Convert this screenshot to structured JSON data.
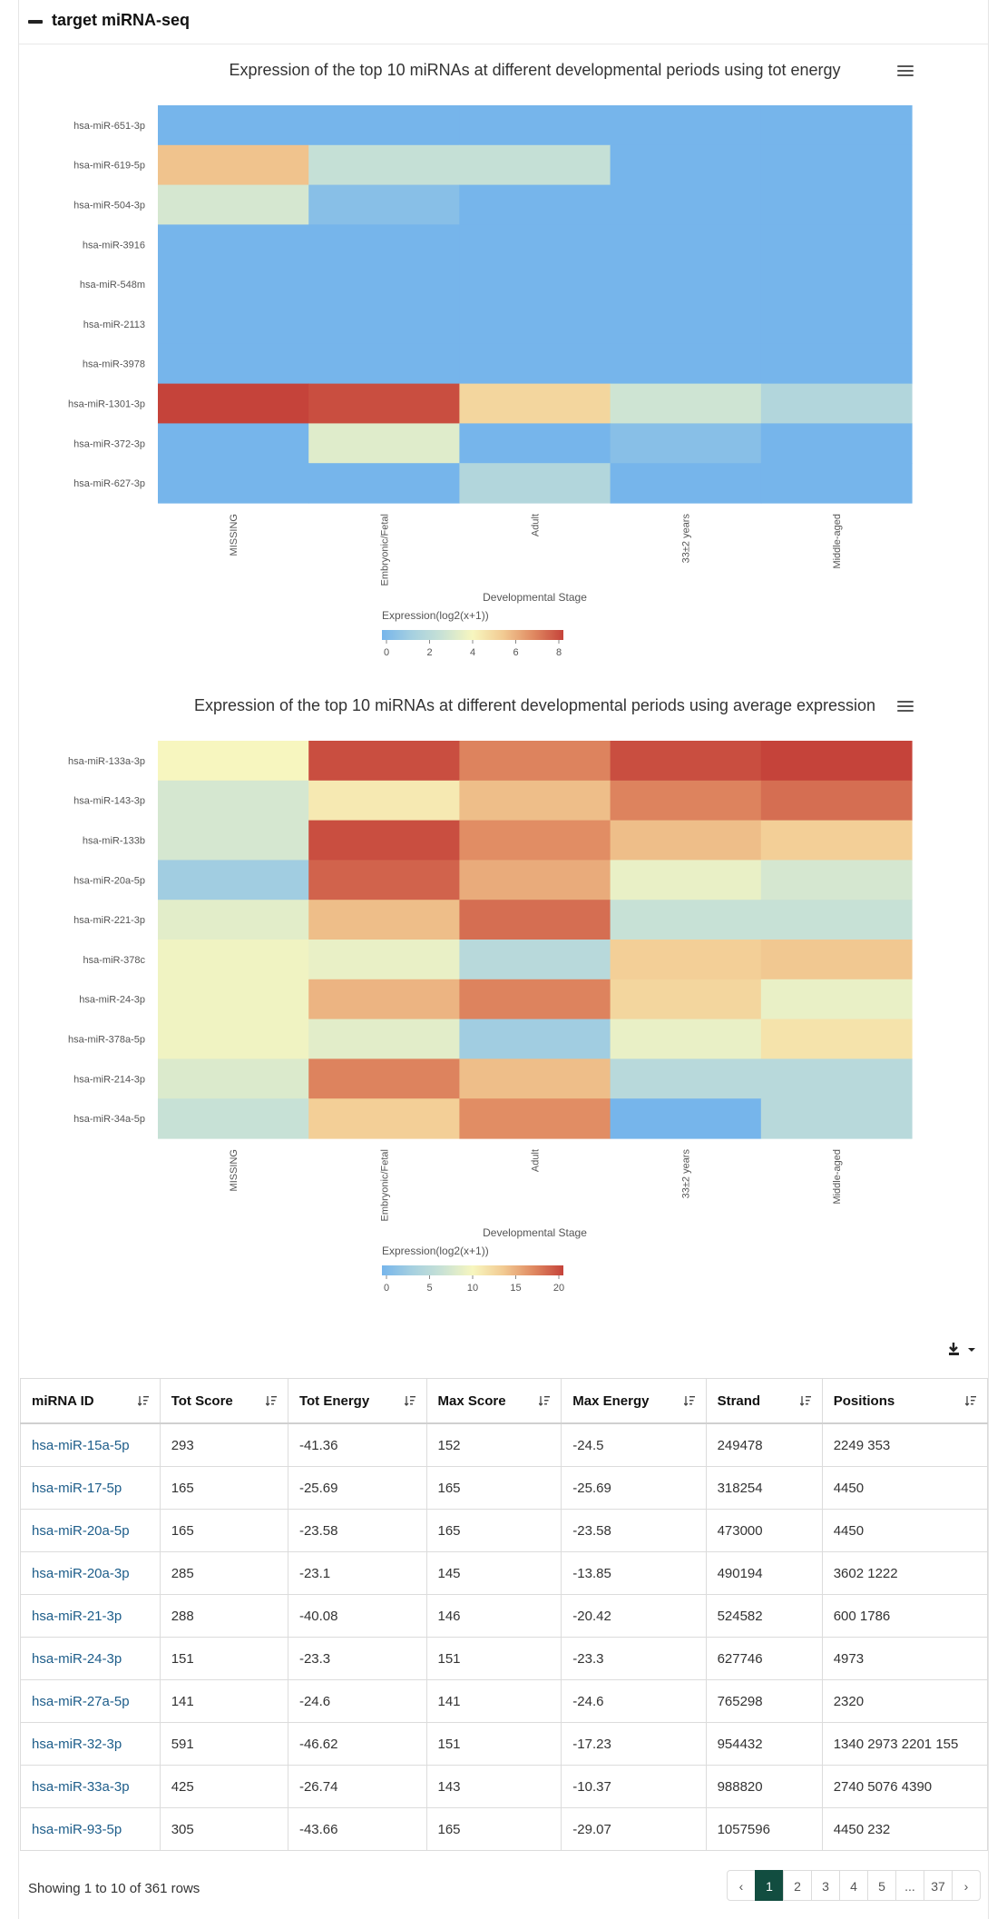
{
  "section": {
    "title": "target miRNA-seq"
  },
  "charts": [
    {
      "title": "Expression of the top 10 miRNAs at different developmental periods using tot energy",
      "xlabel": "Developmental Stage",
      "legend_label": "Expression(log2(x+1))",
      "legend_ticks": [
        "0",
        "2",
        "4",
        "6",
        "8"
      ]
    },
    {
      "title": "Expression of the top 10 miRNAs at different developmental periods using average expression",
      "xlabel": "Developmental Stage",
      "legend_label": "Expression(log2(x+1))",
      "legend_ticks": [
        "0",
        "5",
        "10",
        "15",
        "20"
      ]
    }
  ],
  "chart_data": [
    {
      "type": "heatmap",
      "title": "Expression of the top 10 miRNAs at different developmental periods using tot energy",
      "xlabel": "Developmental Stage",
      "legend_title": "Expression(log2(x+1))",
      "x": [
        "MISSING",
        "Embryonic/Fetal",
        "Adult",
        "33±2 years",
        "Middle-aged"
      ],
      "y": [
        "hsa-miR-651-3p",
        "hsa-miR-619-5p",
        "hsa-miR-504-3p",
        "hsa-miR-3916",
        "hsa-miR-548m",
        "hsa-miR-2113",
        "hsa-miR-3978",
        "hsa-miR-1301-3p",
        "hsa-miR-372-3p",
        "hsa-miR-627-3p"
      ],
      "zmin": 0,
      "zmax": 8,
      "z": [
        [
          0,
          0,
          0,
          0,
          0
        ],
        [
          5.5,
          2.5,
          2.5,
          0,
          0
        ],
        [
          3,
          0.5,
          0,
          0,
          0
        ],
        [
          0,
          0,
          0,
          0,
          0
        ],
        [
          0,
          0,
          0,
          0,
          0
        ],
        [
          0,
          0,
          0,
          0,
          0
        ],
        [
          0,
          0,
          0,
          0,
          0
        ],
        [
          8,
          7.8,
          5,
          2.8,
          1.8
        ],
        [
          0,
          3.3,
          0,
          0.5,
          0
        ],
        [
          0,
          0,
          1.8,
          0,
          0
        ]
      ],
      "colorscale": [
        "#76b5eb",
        "#a6d0e0",
        "#c9e2d5",
        "#f7f6bf",
        "#f2cb93",
        "#e08a62",
        "#c5433a"
      ]
    },
    {
      "type": "heatmap",
      "title": "Expression of the top 10 miRNAs at different developmental periods using average expression",
      "xlabel": "Developmental Stage",
      "legend_title": "Expression(log2(x+1))",
      "x": [
        "MISSING",
        "Embryonic/Fetal",
        "Adult",
        "33±2 years",
        "Middle-aged"
      ],
      "y": [
        "hsa-miR-133a-3p",
        "hsa-miR-143-3p",
        "hsa-miR-133b",
        "hsa-miR-20a-5p",
        "hsa-miR-221-3p",
        "hsa-miR-378c",
        "hsa-miR-24-3p",
        "hsa-miR-378a-5p",
        "hsa-miR-214-3p",
        "hsa-miR-34a-5p"
      ],
      "zmin": 0,
      "zmax": 20,
      "z": [
        [
          10,
          19.5,
          17,
          19.5,
          20
        ],
        [
          7.5,
          11,
          14,
          17,
          18
        ],
        [
          7.5,
          19.5,
          16.5,
          14,
          13
        ],
        [
          3,
          18.5,
          15,
          9,
          7.5
        ],
        [
          8.5,
          14,
          18,
          6.5,
          6.5
        ],
        [
          9.5,
          9,
          5,
          13,
          13.5
        ],
        [
          9.5,
          14.5,
          17,
          12.5,
          9
        ],
        [
          9.5,
          8.5,
          3,
          9,
          11.5
        ],
        [
          8,
          17,
          14,
          5,
          5
        ],
        [
          6.5,
          13,
          16.5,
          0,
          5
        ]
      ],
      "colorscale": [
        "#76b5eb",
        "#a6d0e0",
        "#c9e2d5",
        "#f7f6bf",
        "#f2cb93",
        "#e08a62",
        "#c5433a"
      ]
    }
  ],
  "table": {
    "columns": [
      "miRNA ID",
      "Tot Score",
      "Tot Energy",
      "Max Score",
      "Max Energy",
      "Strand",
      "Positions"
    ],
    "rows": [
      [
        "hsa-miR-15a-5p",
        "293",
        "-41.36",
        "152",
        "-24.5",
        "249478",
        "2249 353"
      ],
      [
        "hsa-miR-17-5p",
        "165",
        "-25.69",
        "165",
        "-25.69",
        "318254",
        "4450"
      ],
      [
        "hsa-miR-20a-5p",
        "165",
        "-23.58",
        "165",
        "-23.58",
        "473000",
        "4450"
      ],
      [
        "hsa-miR-20a-3p",
        "285",
        "-23.1",
        "145",
        "-13.85",
        "490194",
        "3602 1222"
      ],
      [
        "hsa-miR-21-3p",
        "288",
        "-40.08",
        "146",
        "-20.42",
        "524582",
        "600 1786"
      ],
      [
        "hsa-miR-24-3p",
        "151",
        "-23.3",
        "151",
        "-23.3",
        "627746",
        "4973"
      ],
      [
        "hsa-miR-27a-5p",
        "141",
        "-24.6",
        "141",
        "-24.6",
        "765298",
        "2320"
      ],
      [
        "hsa-miR-32-3p",
        "591",
        "-46.62",
        "151",
        "-17.23",
        "954432",
        "1340 2973 2201 155"
      ],
      [
        "hsa-miR-33a-3p",
        "425",
        "-26.74",
        "143",
        "-10.37",
        "988820",
        "2740 5076 4390"
      ],
      [
        "hsa-miR-93-5p",
        "305",
        "-43.66",
        "165",
        "-29.07",
        "1057596",
        "4450 232"
      ]
    ]
  },
  "footer": {
    "summary": "Showing 1 to 10 of 361 rows",
    "pages": [
      "‹",
      "1",
      "2",
      "3",
      "4",
      "5",
      "...",
      "37",
      "›"
    ],
    "active_page": "1"
  }
}
